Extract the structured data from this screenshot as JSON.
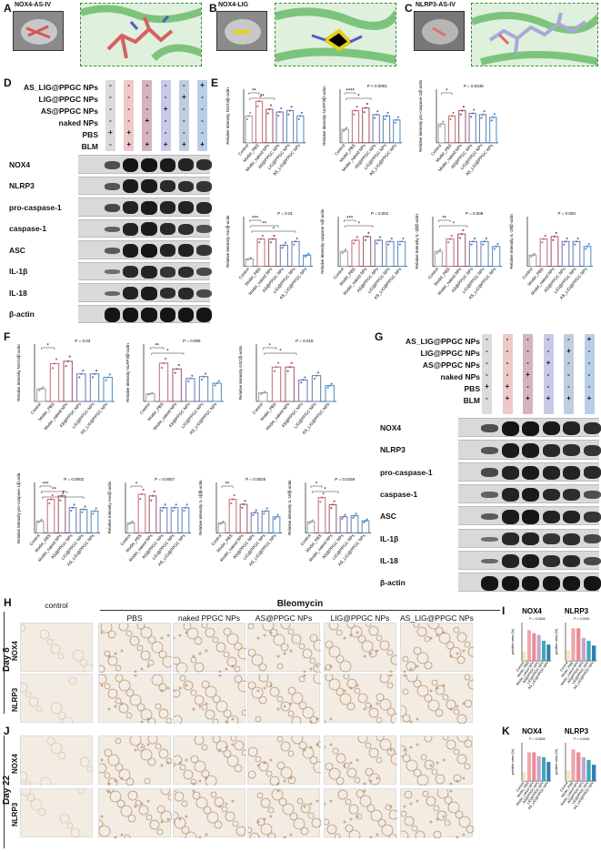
{
  "panels": {
    "A": {
      "letter": "A",
      "name": "NOX4-AS-IV"
    },
    "B": {
      "letter": "B",
      "name": "NOX4-LIG"
    },
    "C": {
      "letter": "C",
      "name": "NLRP3-AS-IV"
    },
    "D": {
      "letter": "D"
    },
    "E": {
      "letter": "E"
    },
    "F": {
      "letter": "F"
    },
    "G": {
      "letter": "G"
    },
    "H": {
      "letter": "H"
    },
    "I": {
      "letter": "I"
    },
    "J": {
      "letter": "J"
    },
    "K": {
      "letter": "K"
    }
  },
  "treatment_rows": [
    "AS_LIG@PPGC NPs",
    "LIG@PPGC NPs",
    "AS@PPGC NPs",
    "naked NPs",
    "PBS",
    "BLM"
  ],
  "treatment_matrix": [
    [
      "-",
      "-",
      "-",
      "-",
      "-",
      "+"
    ],
    [
      "-",
      "-",
      "-",
      "-",
      "+",
      "-"
    ],
    [
      "-",
      "-",
      "-",
      "+",
      "-",
      "-"
    ],
    [
      "-",
      "-",
      "+",
      "-",
      "-",
      "-"
    ],
    [
      "+",
      "+",
      "-",
      "-",
      "-",
      "-"
    ],
    [
      "-",
      "+",
      "+",
      "+",
      "+",
      "+"
    ]
  ],
  "group_colors": [
    "#cfcfcf",
    "#e9b5b6",
    "#c79aa6",
    "#b7b8e0",
    "#a9bcd6",
    "#9fbfe0"
  ],
  "blot_labels": [
    "NOX4",
    "NLRP3",
    "pro-caspase-1",
    "caspase-1",
    "ASC",
    "IL-1β",
    "IL-18",
    "β-actin"
  ],
  "groups": [
    "Control",
    "Model_PBS",
    "Model_naked NPs",
    "AS@PPGC NPs",
    "LIG@PPGC NPs",
    "AS_LIG@PPGC NPs"
  ],
  "groups_F": [
    "Control",
    "Model_PBS",
    "Model_naked NPs",
    "AS@PPGC NPs",
    "LIG@PPGC NPs",
    "AS_LIG@PPGC NPs"
  ],
  "chart_data": [
    {
      "panel": "E",
      "type": "bar",
      "ylabel": "Relative intensity NOX4/β-actin",
      "pvalue": "",
      "stars": [
        "**",
        "**"
      ],
      "values": [
        1.0,
        1.55,
        1.25,
        1.15,
        1.2,
        1.0
      ],
      "ylim": [
        0,
        2
      ]
    },
    {
      "panel": "E",
      "type": "bar",
      "ylabel": "Relative intensity NLRP3/β-actin",
      "pvalue": "P < 0.0001",
      "stars": [
        "****",
        "*"
      ],
      "values": [
        0.5,
        1.2,
        1.3,
        1.05,
        1.0,
        0.85
      ],
      "ylim": [
        0,
        2
      ]
    },
    {
      "panel": "E",
      "type": "bar",
      "ylabel": "Relative intensity pro-caspase-1/β-actin",
      "pvalue": "P = 0.0446",
      "stars": [
        "*"
      ],
      "values": [
        0.7,
        1.0,
        1.2,
        1.1,
        1.05,
        0.95
      ],
      "ylim": [
        0,
        2
      ]
    },
    {
      "panel": "E",
      "type": "bar",
      "ylabel": "Relative intensity Asc/β-actin",
      "pvalue": "P = 0.01",
      "stars": [
        "***",
        "**",
        "*"
      ],
      "values": [
        0.3,
        1.1,
        1.1,
        0.85,
        1.0,
        0.45
      ],
      "ylim": [
        0,
        2
      ]
    },
    {
      "panel": "E",
      "type": "bar",
      "ylabel": "Relative intensity caspase-1/β-actin",
      "pvalue": "P = 0.001",
      "stars": [
        "***",
        "*"
      ],
      "values": [
        0.6,
        1.05,
        1.2,
        1.05,
        1.0,
        1.0
      ],
      "ylim": [
        0,
        2
      ]
    },
    {
      "panel": "E",
      "type": "bar",
      "ylabel": "Relative intensity IL-1β/β-actin",
      "pvalue": "P = 0.009",
      "stars": [
        "**",
        "*"
      ],
      "values": [
        0.6,
        1.1,
        1.3,
        1.0,
        1.0,
        0.8
      ],
      "ylim": [
        0,
        2
      ]
    },
    {
      "panel": "E",
      "type": "bar",
      "ylabel": "Relative intensity IL-18/β-actin",
      "pvalue": "P = 0.003",
      "stars": [],
      "values": [
        0.45,
        1.1,
        1.2,
        1.0,
        1.0,
        0.8
      ],
      "ylim": [
        0,
        2
      ]
    },
    {
      "panel": "F",
      "type": "bar",
      "ylabel": "Relative intensity NOX4/β-actin",
      "pvalue": "P = 0.03",
      "stars": [
        "*"
      ],
      "values": [
        0.55,
        1.65,
        1.75,
        1.2,
        1.2,
        1.05
      ],
      "ylim": [
        0,
        2.5
      ]
    },
    {
      "panel": "F",
      "type": "bar",
      "ylabel": "Relative intensity NLRP3/β-actin",
      "pvalue": "P = 0.006",
      "stars": [
        "**",
        "*"
      ],
      "values": [
        0.4,
        2.0,
        1.7,
        1.2,
        1.3,
        0.95
      ],
      "ylim": [
        0,
        3
      ]
    },
    {
      "panel": "F",
      "type": "bar",
      "ylabel": "Relative intensity ASC/β-actin",
      "pvalue": "P = 0.015",
      "stars": [
        "*",
        "*"
      ],
      "values": [
        0.3,
        1.2,
        1.2,
        0.75,
        0.9,
        0.55
      ],
      "ylim": [
        0,
        2
      ]
    },
    {
      "panel": "F",
      "type": "bar",
      "ylabel": "Relative intensity pro-caspase-1/β-actin",
      "pvalue": "P = 0.0002",
      "stars": [
        "***",
        "**",
        "*"
      ],
      "values": [
        0.7,
        2.0,
        2.2,
        1.5,
        1.4,
        1.3
      ],
      "ylim": [
        0,
        3
      ]
    },
    {
      "panel": "F",
      "type": "bar",
      "ylabel": "Relative intensity Asc/β-actin",
      "pvalue": "P = 0.0057",
      "stars": [
        "*"
      ],
      "values": [
        0.6,
        2.3,
        2.2,
        1.5,
        1.5,
        1.5
      ],
      "ylim": [
        0,
        3
      ]
    },
    {
      "panel": "F",
      "type": "bar",
      "ylabel": "Relative intensity IL-1β/β-actin",
      "pvalue": "P = 0.0026",
      "stars": [
        "**"
      ],
      "values": [
        0.6,
        2.0,
        1.7,
        1.2,
        1.3,
        0.95
      ],
      "ylim": [
        0,
        3
      ]
    },
    {
      "panel": "F",
      "type": "bar",
      "ylabel": "Relative intensity IL-18/β-actin",
      "pvalue": "P = 0.0159",
      "stars": [
        "*",
        "*"
      ],
      "values": [
        0.55,
        1.75,
        1.4,
        0.8,
        0.85,
        0.6
      ],
      "ylim": [
        0,
        2.5
      ]
    }
  ],
  "histology": {
    "treatment_header": "Bleomycin",
    "columns": [
      "control",
      "PBS",
      "naked PPGC NPs",
      "AS@PPGC NPs",
      "LIG@PPGC NPs",
      "AS_LIG@PPGC NPs"
    ],
    "day8": "Day 8",
    "day22": "Day 22",
    "stains": [
      "NOX4",
      "NLRP3"
    ]
  },
  "quant": {
    "I": [
      {
        "title": "NOX4",
        "pvalue": "P = 0.0002",
        "ylabel": "positive area (%)",
        "values": [
          10,
          32,
          29,
          27,
          21,
          17
        ]
      },
      {
        "title": "NLRP3",
        "pvalue": "P = 0.0001",
        "ylabel": "positive area (%)",
        "values": [
          11,
          34,
          34,
          24,
          21,
          16
        ]
      }
    ],
    "K": [
      {
        "title": "NOX4",
        "pvalue": "P = 0.0002",
        "ylabel": "positive area (%)",
        "values": [
          9,
          30,
          30,
          26,
          25,
          20
        ]
      },
      {
        "title": "NLRP3",
        "pvalue": "P = 0.0001",
        "ylabel": "positive area (%)",
        "values": [
          11,
          33,
          30,
          25,
          22,
          17
        ]
      }
    ]
  }
}
